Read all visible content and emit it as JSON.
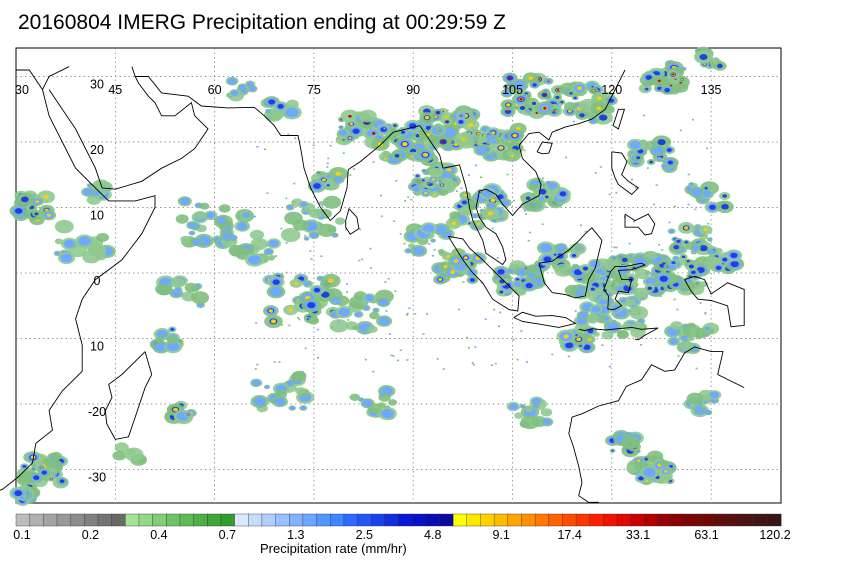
{
  "title": "20160804 IMERG Precipitation ending at 00:29:59 Z",
  "map": {
    "lon_labels": [
      "30",
      "45",
      "60",
      "75",
      "90",
      "105",
      "120",
      "135"
    ],
    "lat_labels": [
      "30",
      "20",
      "10",
      "0",
      "10",
      "-20",
      "-30"
    ],
    "lon_range": [
      30,
      140
    ],
    "lat_range": [
      -35,
      35
    ],
    "gridlines": true,
    "gridline_style": "dotted"
  },
  "legend": {
    "label": "Precipitation rate (mm/hr)",
    "tick_labels": [
      "0.1",
      "0.2",
      "0.4",
      "0.7",
      "1.3",
      "2.5",
      "4.8",
      "9.1",
      "17.4",
      "33.1",
      "63.1",
      "120.2"
    ],
    "colors": [
      "#bdbdbd",
      "#b0b0b0",
      "#a4a4a4",
      "#989898",
      "#8c8c8c",
      "#808080",
      "#747474",
      "#686868",
      "#a6e29a",
      "#94d889",
      "#82ce78",
      "#70c467",
      "#5eba57",
      "#4cb046",
      "#3ea63a",
      "#329c2f",
      "#dbe9ff",
      "#c6dcff",
      "#b0cfff",
      "#99c1ff",
      "#82b3ff",
      "#6aa5ff",
      "#5396ff",
      "#3c87ff",
      "#2d6bff",
      "#2456f5",
      "#1b41eb",
      "#122ce0",
      "#0917d6",
      "#0a10c8",
      "#0b0bb5",
      "#0c08a0",
      "#ffff00",
      "#ffe900",
      "#ffd200",
      "#ffbc00",
      "#ffa500",
      "#ff8f00",
      "#ff7800",
      "#ff6200",
      "#ff4b00",
      "#ff3500",
      "#ff1e00",
      "#f21000",
      "#e00800",
      "#c70000",
      "#b00000",
      "#990000",
      "#8a0000",
      "#7d0404",
      "#700808",
      "#640c0c",
      "#580f0f",
      "#4d1212",
      "#421414",
      "#381616"
    ]
  },
  "precip_colors": {
    "light": "#7fbf7f",
    "light2": "#8fc98f",
    "moderate": "#6fa8ff",
    "heavy": "#2040e0",
    "very_heavy": "#ffd000",
    "intense": "#ff6a00",
    "extreme": "#d00000",
    "coast": "#000000"
  }
}
